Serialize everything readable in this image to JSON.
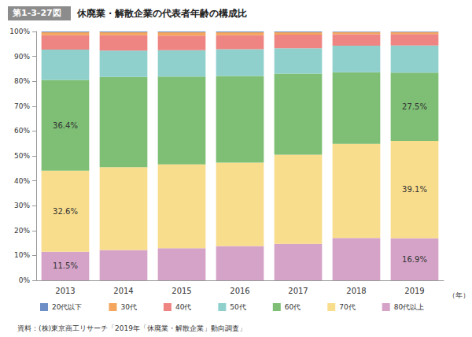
{
  "chart_data": {
    "type": "bar",
    "stacked": true,
    "figure_number": "第1-3-27図",
    "title": "休廃業・解散企業の代表者年齢の構成比",
    "x_label": "（年）",
    "source": "資料：(株)東京商工リサーチ「2019年「休廃業・解散企業」動向調査」",
    "categories": [
      "2013",
      "2014",
      "2015",
      "2016",
      "2017",
      "2018",
      "2019"
    ],
    "ylim": [
      0,
      100
    ],
    "yticks": [
      {
        "value": 0,
        "label": "0%"
      },
      {
        "value": 10,
        "label": "10%"
      },
      {
        "value": 20,
        "label": "20%"
      },
      {
        "value": 30,
        "label": "30%"
      },
      {
        "value": 40,
        "label": "40%"
      },
      {
        "value": 50,
        "label": "50%"
      },
      {
        "value": 60,
        "label": "60%"
      },
      {
        "value": 70,
        "label": "70%"
      },
      {
        "value": 80,
        "label": "80%"
      },
      {
        "value": 90,
        "label": "90%"
      },
      {
        "value": 100,
        "label": "100%"
      }
    ],
    "grid": false,
    "legend": "bottom",
    "data_labels": true,
    "series": [
      {
        "name": "20代以下",
        "color": "#6d8fc6",
        "values": [
          0.3,
          0.3,
          0.3,
          0.3,
          0.3,
          0.2,
          0.2
        ]
      },
      {
        "name": "30代",
        "color": "#f4a55e",
        "values": [
          1.2,
          1.2,
          1.4,
          1.2,
          1.0,
          0.9,
          0.8
        ]
      },
      {
        "name": "40代",
        "color": "#ee8582",
        "values": [
          5.8,
          6.2,
          5.8,
          5.6,
          5.4,
          4.6,
          4.6
        ]
      },
      {
        "name": "50代",
        "color": "#8fd0cd",
        "values": [
          12.2,
          10.6,
          10.6,
          10.8,
          10.2,
          10.7,
          10.9
        ]
      },
      {
        "name": "60代",
        "color": "#7ebf75",
        "values": [
          36.4,
          36.2,
          35.3,
          34.8,
          32.6,
          28.8,
          27.5
        ],
        "value_labels": [
          "36.4%",
          null,
          null,
          null,
          null,
          null,
          "27.5%"
        ]
      },
      {
        "name": "70代",
        "color": "#f8dd8c",
        "values": [
          32.6,
          33.3,
          33.7,
          33.5,
          35.9,
          37.8,
          39.1
        ],
        "value_labels": [
          "32.6%",
          null,
          null,
          null,
          null,
          null,
          "39.1%"
        ]
      },
      {
        "name": "80代以上",
        "color": "#d5a3c8",
        "values": [
          11.5,
          12.2,
          12.9,
          13.8,
          14.6,
          17.0,
          16.9
        ],
        "value_labels": [
          "11.5%",
          null,
          null,
          null,
          null,
          null,
          "16.9%"
        ]
      }
    ]
  }
}
